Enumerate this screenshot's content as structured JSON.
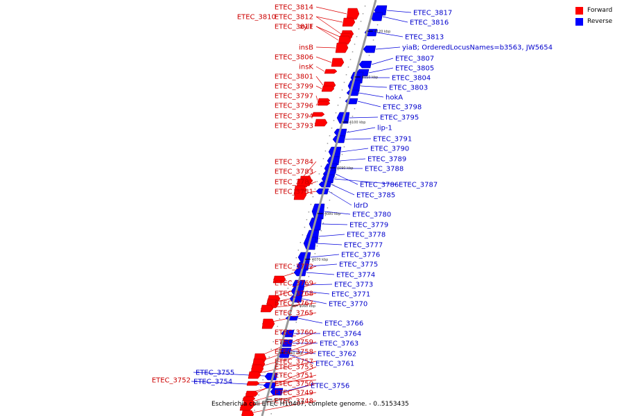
{
  "legend": {
    "forward_label": "Forward",
    "reverse_label": "Reverse",
    "forward_color": "#ff0000",
    "reverse_color": "#0000ff"
  },
  "colors": {
    "forward_label": "#cc0000",
    "reverse_label": "#0000cc",
    "leader": "#dd0000",
    "leader_rev": "#0000dd",
    "axis": "#999999"
  },
  "caption": "Escherichia coli ETEC H10407, complete genome. - 0..5153435",
  "ticks": [
    "4040 kbp",
    "4050 kbp",
    "4060 kbp",
    "4070 kbp",
    "4080 kbp",
    "4090 kbp",
    "4100 kbp",
    "4110 kbp",
    "4120 kbp"
  ],
  "forward_genes": [
    "ETEC_3814",
    "ETEC_3812",
    "ETEC_3810",
    "xylF",
    "ETEC_3811",
    "insB",
    "ETEC_3806",
    "insK",
    "ETEC_3801",
    "ETEC_3799",
    "ETEC_3797",
    "ETEC_3796",
    "ETEC_3794",
    "ETEC_3793",
    "ETEC_3784",
    "ETEC_3783",
    "ETEC_3782",
    "ETEC_3781",
    "ETEC_3772",
    "ETEC_3769",
    "ETEC_3768",
    "ETEC_3767",
    "ETEC_3765",
    "ETEC_3760",
    "ETEC_3759",
    "ETEC_3758",
    "ETEC_3757",
    "ETEC_3753",
    "ETEC_3751",
    "ETEC_3752",
    "ETEC_3750",
    "ETEC_3749",
    "ETEC_3748"
  ],
  "reverse_genes": [
    "ETEC_3817",
    "ETEC_3816",
    "ETEC_3813",
    "yiaB; OrderedLocusNames=b3563, JW5654",
    "ETEC_3807",
    "ETEC_3805",
    "ETEC_3804",
    "ETEC_3803",
    "hokA",
    "ETEC_3798",
    "ETEC_3795",
    "lip-1",
    "ETEC_3791",
    "ETEC_3790",
    "ETEC_3789",
    "ETEC_3788",
    "ETEC_3786",
    "ETEC_3787",
    "ETEC_3785",
    "ldrD",
    "ETEC_3780",
    "ETEC_3779",
    "ETEC_3778",
    "ETEC_3777",
    "ETEC_3776",
    "ETEC_3775",
    "ETEC_3774",
    "ETEC_3773",
    "ETEC_3771",
    "ETEC_3770",
    "ETEC_3766",
    "ETEC_3764",
    "ETEC_3763",
    "ETEC_3762",
    "ETEC_3761",
    "ETEC_3755",
    "ETEC_3754",
    "ETEC_3756"
  ]
}
